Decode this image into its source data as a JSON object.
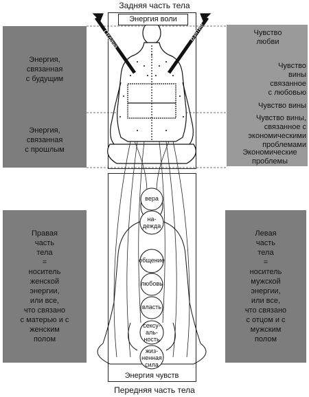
{
  "header": {
    "top_title": "Задняя часть тела",
    "bottom_title": "Передняя часть тела"
  },
  "figure_labels": {
    "will_energy": "Энергия воли",
    "senses_energy": "Энергия чувств"
  },
  "left_panels": {
    "future": "Энергия,\nсвязанная\nс будущим",
    "past": "Энергия,\nсвязанная\nс прошлым",
    "right_side": "Правая\nчасть\nтела\n=\nноситель\nженской\nэнергии,\nили все,\nчто связано\nс матерью и с\nженским\nполом"
  },
  "right_panels": {
    "love_feeling": "Чувство\nлюбви",
    "guilt_love": "Чувство\nвины\nсвязанное\nс любовью",
    "guilt": "Чувство вины",
    "guilt_economic": "Чувство вины,\nсвязанное с\nэкономическими\nпроблемами",
    "economic": "Экономические\nпроблемы",
    "left_side": "Левая\nчасть\nтела\n=\nноситель\nмужской\nэнергии,\nили все,\nчто связано\nс отцом и с\nмужским\nполом"
  },
  "arrows": {
    "left_arrow_text": "Отдача",
    "right_arrow_text": "Взятие"
  },
  "chakras": [
    {
      "label": "вера"
    },
    {
      "label": "на-\nдежда"
    },
    {
      "label": "общение"
    },
    {
      "label": "любовь"
    },
    {
      "label": "власть"
    },
    {
      "label": "сексу-\nаль-\nность"
    },
    {
      "label": "жиз-\nненная\nсила"
    }
  ]
}
